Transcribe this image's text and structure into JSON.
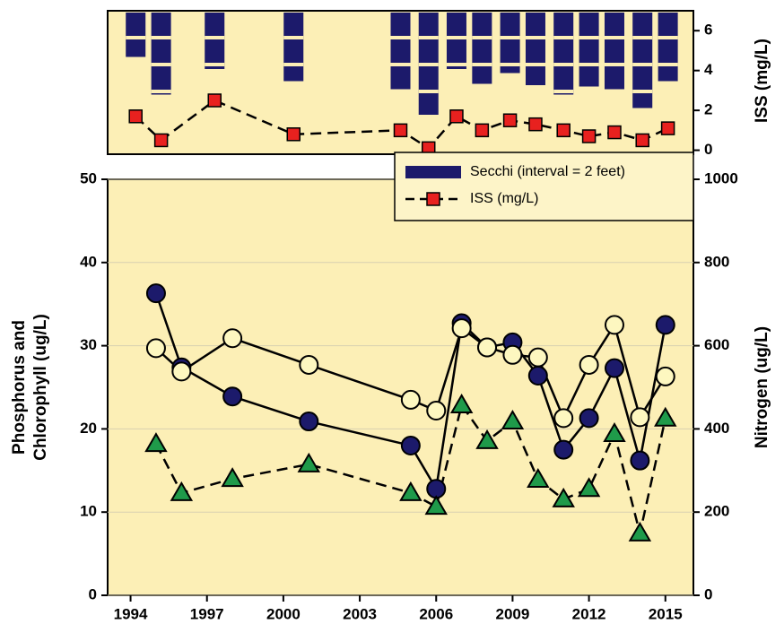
{
  "chart_data": [
    {
      "type": "bar_line",
      "xlim": [
        1993.1,
        2016.1
      ],
      "y2lim": [
        -0.2,
        7
      ],
      "y2ticks": [
        0,
        2,
        4,
        6
      ],
      "y2label": "ISS (mg/L)",
      "series": [
        {
          "name": "Secchi (interval = 2 feet)",
          "type": "bar",
          "color": "#1c1a6b",
          "x": [
            1994.2,
            1995.2,
            1997.3,
            2000.4,
            2004.6,
            2005.7,
            2006.8,
            2007.8,
            2008.9,
            2009.9,
            2011.0,
            2012.0,
            2013.0,
            2014.1,
            2015.1
          ],
          "values": [
            3.3,
            6.1,
            4.2,
            5.1,
            5.7,
            7.6,
            4.2,
            5.3,
            4.5,
            5.4,
            6.1,
            5.5,
            5.7,
            7.1,
            5.1
          ]
        },
        {
          "name": "ISS (mg/L)",
          "type": "line",
          "axis": "y2",
          "color": "#e8211f",
          "dashed": true,
          "marker": "square",
          "x": [
            1994.2,
            1995.2,
            1997.3,
            2000.4,
            2004.6,
            2005.7,
            2006.8,
            2007.8,
            2008.9,
            2009.9,
            2011.0,
            2012.0,
            2013.0,
            2014.1,
            2015.1
          ],
          "values": [
            1.7,
            0.5,
            2.5,
            0.8,
            1.0,
            0.1,
            1.7,
            1.0,
            1.5,
            1.3,
            1.0,
            0.7,
            0.9,
            0.5,
            1.1
          ]
        }
      ],
      "legend": "bottom-right"
    },
    {
      "type": "line",
      "xlim": [
        1993.1,
        2016.1
      ],
      "xticks": [
        1994,
        1997,
        2000,
        2003,
        2006,
        2009,
        2012,
        2015
      ],
      "ylim": [
        0,
        50
      ],
      "yticks": [
        0,
        10,
        20,
        30,
        40,
        50
      ],
      "y2lim": [
        0,
        1000
      ],
      "y2ticks": [
        0,
        200,
        400,
        600,
        800,
        1000
      ],
      "ylabel": [
        "Phosphorus and",
        "Chlorophyll (ug/L)"
      ],
      "y2label": "Nitrogen (ug/L)",
      "grid": true,
      "x": [
        1995,
        1996,
        1998,
        2001,
        2005,
        2006,
        2007,
        2008,
        2009,
        2010,
        2011,
        2012,
        2013,
        2014,
        2015
      ],
      "series": [
        {
          "color": "#1c1a6b",
          "marker": "circle",
          "dashed": false,
          "values": [
            36.3,
            27.4,
            23.9,
            20.9,
            18.0,
            12.8,
            32.7,
            29.8,
            30.4,
            26.4,
            17.5,
            21.3,
            27.3,
            16.2,
            32.5
          ]
        },
        {
          "color": "#fdf7c0",
          "marker": "circle",
          "dashed": false,
          "values": [
            29.7,
            26.9,
            30.9,
            27.7,
            23.5,
            22.2,
            32.1,
            29.8,
            28.9,
            28.6,
            21.3,
            27.7,
            32.5,
            21.4,
            26.3
          ]
        },
        {
          "color": "#1f9a4a",
          "marker": "triangle",
          "dashed": true,
          "axis": "y2",
          "values": [
            364,
            246,
            280,
            315,
            246,
            213,
            457,
            371,
            418,
            278,
            231,
            256,
            388,
            149,
            425
          ]
        }
      ]
    }
  ]
}
